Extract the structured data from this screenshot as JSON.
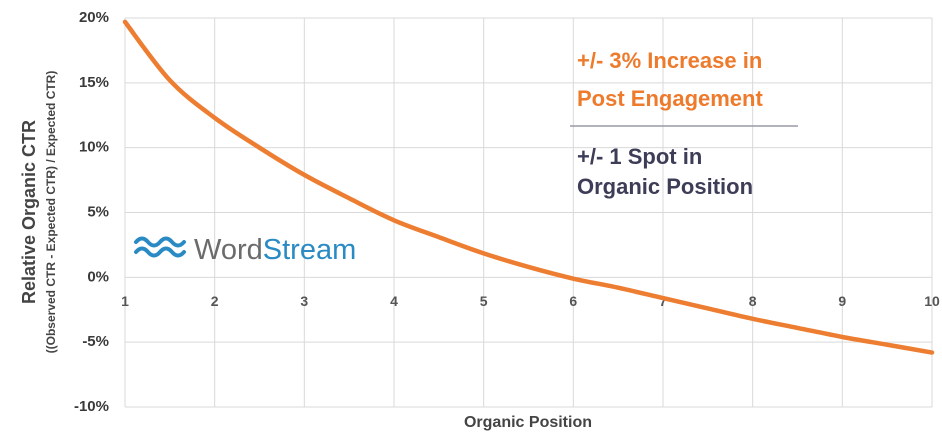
{
  "chart_data": {
    "type": "line",
    "xlabel": "Organic Position",
    "ylabel": [
      "Relative Organic CTR",
      "((Observed CTR - Expected CTR) / Expected CTR)"
    ],
    "x": [
      1,
      1.5,
      2,
      2.5,
      3,
      3.5,
      4,
      4.5,
      5,
      5.5,
      6,
      6.5,
      7,
      7.5,
      8,
      8.5,
      9,
      9.5,
      10
    ],
    "series": [
      {
        "color": "#ed7d31",
        "values": [
          19.7,
          15.2,
          12.3,
          10.0,
          7.9,
          6.1,
          4.4,
          3.1,
          1.85,
          0.8,
          -0.1,
          -0.8,
          -1.6,
          -2.4,
          -3.2,
          -3.9,
          -4.6,
          -5.2,
          -5.8
        ]
      }
    ],
    "xlim": [
      1,
      10
    ],
    "xticks": [
      1,
      2,
      3,
      4,
      5,
      6,
      7,
      8,
      9,
      10
    ],
    "ylim": [
      -10,
      20
    ],
    "yticks": [
      {
        "value": -10,
        "label": "-10%"
      },
      {
        "value": -5,
        "label": "-5%"
      },
      {
        "value": 0,
        "label": "0%"
      },
      {
        "value": 5,
        "label": "5%"
      },
      {
        "value": 10,
        "label": "10%"
      },
      {
        "value": 15,
        "label": "15%"
      },
      {
        "value": 20,
        "label": "20%"
      }
    ],
    "grid": true,
    "annotations": [
      {
        "lines": [
          "+/- 3% Increase in",
          "Post Engagement"
        ],
        "color": "#ee7a2c"
      },
      {
        "lines": [
          "+/- 1 Spot in",
          "Organic Position"
        ],
        "color": "#3d3d58"
      }
    ],
    "logo": [
      "Word",
      "Stream"
    ]
  }
}
